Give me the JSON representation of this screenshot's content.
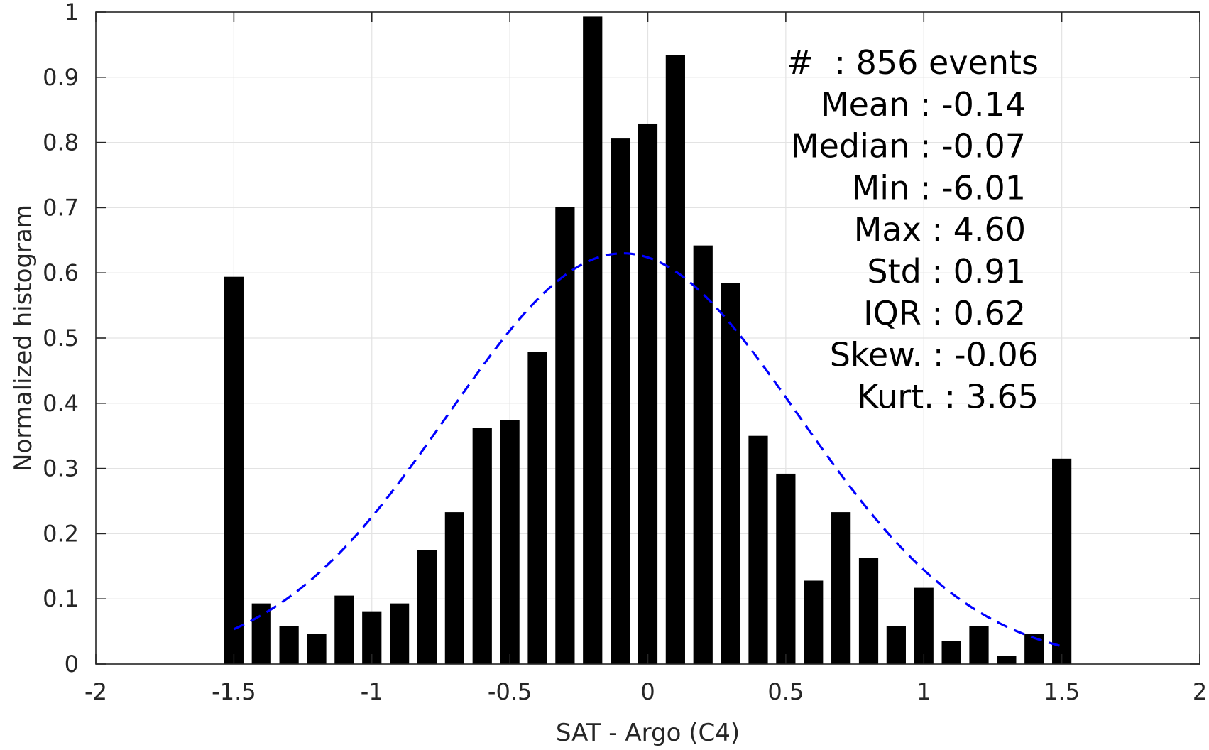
{
  "chart_data": {
    "type": "bar",
    "xlabel": "SAT - Argo (C4)",
    "ylabel": "Normalized histogram",
    "xlim": [
      -2,
      2
    ],
    "ylim": [
      0,
      1
    ],
    "xticks": [
      "-2",
      "-1.5",
      "-1",
      "-0.5",
      "0",
      "0.5",
      "1",
      "1.5",
      "2"
    ],
    "yticks": [
      "0",
      "0.1",
      "0.2",
      "0.3",
      "0.4",
      "0.5",
      "0.6",
      "0.7",
      "0.8",
      "0.9",
      "1"
    ],
    "grid": true,
    "bar_width": 0.07,
    "bar_color": "#000000",
    "bars": [
      {
        "x": -1.5,
        "y": 0.594
      },
      {
        "x": -1.4,
        "y": 0.093
      },
      {
        "x": -1.3,
        "y": 0.058
      },
      {
        "x": -1.2,
        "y": 0.046
      },
      {
        "x": -1.1,
        "y": 0.105
      },
      {
        "x": -1.0,
        "y": 0.081
      },
      {
        "x": -0.9,
        "y": 0.093
      },
      {
        "x": -0.8,
        "y": 0.175
      },
      {
        "x": -0.7,
        "y": 0.233
      },
      {
        "x": -0.6,
        "y": 0.362
      },
      {
        "x": -0.5,
        "y": 0.374
      },
      {
        "x": -0.4,
        "y": 0.479
      },
      {
        "x": -0.3,
        "y": 0.701
      },
      {
        "x": -0.2,
        "y": 0.993
      },
      {
        "x": -0.1,
        "y": 0.806
      },
      {
        "x": 0.0,
        "y": 0.829
      },
      {
        "x": 0.1,
        "y": 0.934
      },
      {
        "x": 0.2,
        "y": 0.642
      },
      {
        "x": 0.3,
        "y": 0.584
      },
      {
        "x": 0.4,
        "y": 0.35
      },
      {
        "x": 0.5,
        "y": 0.292
      },
      {
        "x": 0.6,
        "y": 0.128
      },
      {
        "x": 0.7,
        "y": 0.233
      },
      {
        "x": 0.8,
        "y": 0.163
      },
      {
        "x": 0.9,
        "y": 0.058
      },
      {
        "x": 1.0,
        "y": 0.117
      },
      {
        "x": 1.1,
        "y": 0.035
      },
      {
        "x": 1.2,
        "y": 0.058
      },
      {
        "x": 1.3,
        "y": 0.012
      },
      {
        "x": 1.4,
        "y": 0.046
      },
      {
        "x": 1.5,
        "y": 0.315
      }
    ],
    "fit_curve": {
      "style": "dashed",
      "color": "#0000ff",
      "mean": -0.09,
      "std": 0.635,
      "peak": 0.63,
      "x_range": [
        -1.5,
        1.5
      ]
    },
    "stats_lines": [
      "#  : 856 events",
      "Mean : -0.14",
      "Median : -0.07",
      "Min : -6.01",
      "Max : 4.60",
      "Std : 0.91",
      "IQR : 0.62",
      "Skew. : -0.06",
      "Kurt. : 3.65"
    ]
  }
}
